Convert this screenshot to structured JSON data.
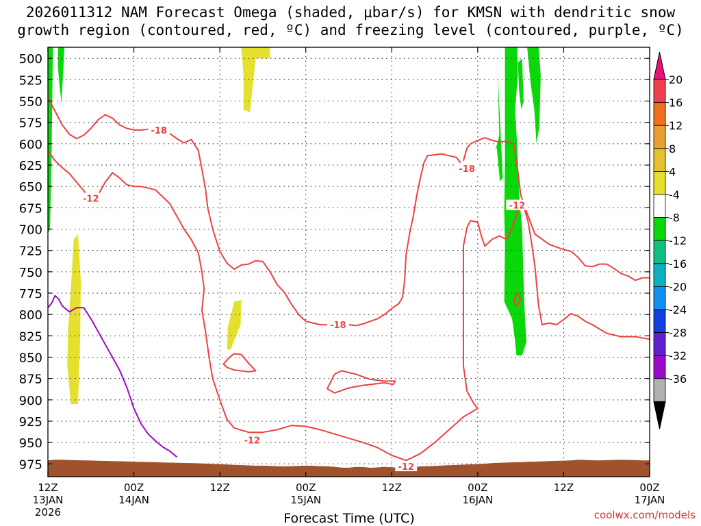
{
  "title": {
    "line1": "2026011312 NAM Forecast Omega (shaded, μbar/s) for KMSN with dendritic snow",
    "line2": "growth region (contoured, red, ºC) and freezing level (contoured, purple, ºC)"
  },
  "footer": {
    "xlabel": "Forecast Time (UTC)",
    "credit": "coolwx.com/models"
  },
  "colors": {
    "red_contour": "#ef4040",
    "purple_contour": "#9a08c8",
    "ground": "#a0522d",
    "yellow": "#e5e02e",
    "green": "#0ad80a"
  },
  "chart_data": {
    "type": "heatmap",
    "title": "2026011312 NAM Forecast Omega (shaded, μbar/s) for KMSN with dendritic snow growth region (contoured, red, ºC) and freezing level (contoured, purple, ºC)",
    "xlabel": "Forecast Time (UTC)",
    "ylabel": "",
    "x_range_hours": [
      0,
      84
    ],
    "y_range_hpa": [
      487,
      990
    ],
    "y_ticks": [
      500,
      525,
      550,
      575,
      600,
      625,
      650,
      675,
      700,
      725,
      750,
      775,
      800,
      825,
      850,
      875,
      900,
      925,
      950,
      975
    ],
    "x_ticks": [
      {
        "hour": 0,
        "line1": "12Z",
        "line2": "13JAN",
        "line3": "2026"
      },
      {
        "hour": 12,
        "line1": "00Z",
        "line2": "14JAN",
        "line3": ""
      },
      {
        "hour": 24,
        "line1": "12Z",
        "line2": "",
        "line3": ""
      },
      {
        "hour": 36,
        "line1": "00Z",
        "line2": "15JAN",
        "line3": ""
      },
      {
        "hour": 48,
        "line1": "12Z",
        "line2": "",
        "line3": ""
      },
      {
        "hour": 60,
        "line1": "00Z",
        "line2": "16JAN",
        "line3": ""
      },
      {
        "hour": 72,
        "line1": "12Z",
        "line2": "",
        "line3": ""
      },
      {
        "hour": 84,
        "line1": "00Z",
        "line2": "17JAN",
        "line3": ""
      }
    ],
    "colorbar": {
      "labels": [
        "20",
        "16",
        "12",
        "8",
        "4",
        "-4",
        "-8",
        "-12",
        "-16",
        "-20",
        "-24",
        "-28",
        "-32",
        "-36"
      ],
      "colors": [
        "#f04050",
        "#f07020",
        "#e8a030",
        "#e5c030",
        "#e5e02e",
        "#ffffff",
        "#0ad80a",
        "#10c080",
        "#10b0c0",
        "#1090f0",
        "#1040e0",
        "#6020d0",
        "#9a08c8",
        "#b0b0b0"
      ]
    },
    "contour_labels": [
      {
        "text": "-18",
        "hour": 15.5,
        "hpa": 584
      },
      {
        "text": "-12",
        "hour": 6.0,
        "hpa": 664
      },
      {
        "text": "-18",
        "hour": 40.5,
        "hpa": 812
      },
      {
        "text": "-12",
        "hour": 28.5,
        "hpa": 947
      },
      {
        "text": "-12",
        "hour": 50.0,
        "hpa": 978
      },
      {
        "text": "-18",
        "hour": 58.5,
        "hpa": 629
      },
      {
        "text": "-12",
        "hour": 65.5,
        "hpa": 672
      }
    ],
    "series": [
      {
        "name": "dgz_-18_upper",
        "color": "#ef4040",
        "points": [
          [
            0,
            546
          ],
          [
            1,
            562
          ],
          [
            2,
            578
          ],
          [
            3,
            589
          ],
          [
            4,
            594
          ],
          [
            5,
            590
          ],
          [
            6,
            582
          ],
          [
            7,
            572
          ],
          [
            8,
            566
          ],
          [
            9,
            570
          ],
          [
            10,
            578
          ],
          [
            11,
            582
          ],
          [
            12,
            584
          ],
          [
            13,
            584
          ],
          [
            14,
            583
          ],
          [
            15,
            584
          ],
          [
            17,
            588
          ],
          [
            18,
            594
          ],
          [
            19,
            599
          ],
          [
            20,
            595
          ],
          [
            21,
            608
          ],
          [
            21.5,
            630
          ],
          [
            22,
            653
          ],
          [
            22.3,
            675
          ],
          [
            23,
            700
          ],
          [
            24,
            726
          ],
          [
            25,
            740
          ],
          [
            26,
            747
          ],
          [
            27,
            742
          ],
          [
            28,
            741
          ],
          [
            29,
            737
          ],
          [
            30,
            738
          ],
          [
            31,
            750
          ],
          [
            32,
            765
          ],
          [
            33,
            774
          ],
          [
            34,
            788
          ],
          [
            35,
            800
          ],
          [
            36,
            808
          ],
          [
            37,
            810
          ],
          [
            38,
            812
          ],
          [
            39,
            812
          ],
          [
            40,
            810
          ],
          [
            41,
            811
          ],
          [
            42,
            812
          ],
          [
            43,
            813
          ],
          [
            44,
            811
          ],
          [
            45,
            808
          ],
          [
            46,
            805
          ],
          [
            47,
            800
          ],
          [
            48,
            793
          ],
          [
            49,
            787
          ],
          [
            49.5,
            780
          ],
          [
            49.8,
            760
          ],
          [
            50,
            730
          ],
          [
            50.5,
            705
          ],
          [
            51,
            685
          ],
          [
            51.5,
            660
          ],
          [
            52,
            640
          ],
          [
            52.5,
            622
          ],
          [
            53,
            614
          ],
          [
            55,
            612
          ],
          [
            56,
            614
          ],
          [
            57,
            616
          ],
          [
            57.5,
            621
          ],
          [
            57.5,
            627
          ]
        ]
      },
      {
        "name": "dgz_-12_upper",
        "color": "#ef4040",
        "points": [
          [
            0,
            608
          ],
          [
            1,
            620
          ],
          [
            2,
            628
          ],
          [
            3,
            635
          ],
          [
            4,
            645
          ],
          [
            5,
            655
          ],
          [
            5.5,
            661
          ]
        ]
      },
      {
        "name": "dgz_-12_cont",
        "color": "#ef4040",
        "points": [
          [
            7,
            660
          ],
          [
            8,
            645
          ],
          [
            9,
            634
          ],
          [
            10,
            640
          ],
          [
            11,
            648
          ],
          [
            12,
            650
          ],
          [
            13,
            650
          ],
          [
            14,
            652
          ],
          [
            15,
            654
          ],
          [
            16,
            662
          ],
          [
            17,
            670
          ],
          [
            18,
            685
          ],
          [
            19,
            700
          ],
          [
            20,
            712
          ],
          [
            21,
            728
          ],
          [
            21.5,
            750
          ],
          [
            21.8,
            770
          ],
          [
            21.5,
            795
          ],
          [
            22,
            820
          ],
          [
            22.5,
            850
          ],
          [
            23,
            875
          ],
          [
            24,
            900
          ],
          [
            25,
            923
          ],
          [
            26,
            933
          ],
          [
            28,
            938
          ],
          [
            30,
            938
          ],
          [
            32,
            935
          ],
          [
            34,
            930
          ],
          [
            36,
            931
          ],
          [
            38,
            935
          ],
          [
            40,
            940
          ],
          [
            42,
            945
          ],
          [
            44,
            950
          ],
          [
            46,
            956
          ],
          [
            48,
            965
          ],
          [
            50,
            971
          ],
          [
            52,
            963
          ],
          [
            54,
            950
          ],
          [
            56,
            935
          ],
          [
            58,
            920
          ],
          [
            59,
            915
          ],
          [
            60,
            910
          ],
          [
            59.5,
            905
          ],
          [
            58.5,
            890
          ],
          [
            58,
            860
          ],
          [
            58,
            820
          ],
          [
            58,
            780
          ],
          [
            58,
            720
          ],
          [
            58.5,
            698
          ],
          [
            59,
            690
          ],
          [
            60,
            692
          ],
          [
            60.5,
            708
          ],
          [
            61,
            720
          ],
          [
            62,
            712
          ],
          [
            63,
            708
          ],
          [
            64,
            712
          ],
          [
            65,
            695
          ],
          [
            65.5,
            680
          ],
          [
            66,
            672
          ],
          [
            66.5,
            676
          ],
          [
            67,
            690
          ],
          [
            67.5,
            715
          ],
          [
            68,
            745
          ],
          [
            68.5,
            790
          ],
          [
            69,
            812
          ],
          [
            70,
            810
          ],
          [
            71,
            812
          ],
          [
            72,
            806
          ],
          [
            73,
            799
          ],
          [
            74,
            802
          ],
          [
            75,
            808
          ],
          [
            76,
            812
          ],
          [
            78,
            822
          ],
          [
            80,
            826
          ],
          [
            82,
            826
          ],
          [
            84,
            829
          ]
        ]
      },
      {
        "name": "dgz_-18_right",
        "color": "#ef4040",
        "points": [
          [
            58,
            620
          ],
          [
            58.5,
            605
          ],
          [
            59,
            600
          ],
          [
            60,
            596
          ],
          [
            61,
            593
          ],
          [
            62,
            596
          ],
          [
            63,
            598
          ],
          [
            64,
            597
          ],
          [
            65,
            600
          ],
          [
            65.5,
            625
          ],
          [
            66,
            660
          ],
          [
            67,
            684
          ],
          [
            68,
            706
          ],
          [
            70,
            718
          ],
          [
            72,
            724
          ],
          [
            73,
            726
          ],
          [
            74,
            733
          ],
          [
            75,
            743
          ],
          [
            76,
            744
          ],
          [
            77,
            741
          ],
          [
            78,
            741
          ],
          [
            79,
            746
          ],
          [
            80,
            752
          ],
          [
            81,
            755
          ],
          [
            82,
            760
          ],
          [
            83,
            757
          ],
          [
            84,
            757
          ]
        ]
      },
      {
        "name": "dgz_-18_closed",
        "color": "#ef4040",
        "points": [
          [
            40,
            870
          ],
          [
            41,
            866
          ],
          [
            43,
            870
          ],
          [
            45,
            876
          ],
          [
            47,
            878
          ],
          [
            48.5,
            878
          ],
          [
            48.2,
            882
          ],
          [
            47,
            880
          ],
          [
            44,
            883
          ],
          [
            42,
            886
          ],
          [
            40,
            892
          ],
          [
            39,
            887
          ],
          [
            40,
            870
          ]
        ]
      },
      {
        "name": "dgz_-12_closed_small",
        "color": "#ef4040",
        "points": [
          [
            25.5,
            849
          ],
          [
            26,
            846
          ],
          [
            27,
            847
          ],
          [
            28,
            857
          ],
          [
            29,
            866
          ],
          [
            28,
            867
          ],
          [
            26,
            865
          ],
          [
            25,
            862
          ],
          [
            24.5,
            858
          ],
          [
            25.5,
            849
          ]
        ]
      },
      {
        "name": "dgz_-12_closed_tiny",
        "color": "#ef4040",
        "points": [
          [
            65.5,
            775
          ],
          [
            66,
            782
          ],
          [
            65.5,
            790
          ],
          [
            65,
            785
          ],
          [
            65.5,
            775
          ]
        ]
      },
      {
        "name": "freezing_level_0C",
        "color": "#9a08c8",
        "points": [
          [
            0,
            792
          ],
          [
            0.5,
            787
          ],
          [
            1,
            778
          ],
          [
            1.5,
            782
          ],
          [
            2,
            790
          ],
          [
            3,
            797
          ],
          [
            4,
            792
          ],
          [
            5,
            792
          ],
          [
            6,
            805
          ],
          [
            7,
            820
          ],
          [
            8,
            835
          ],
          [
            9,
            850
          ],
          [
            10,
            865
          ],
          [
            11,
            885
          ],
          [
            12,
            910
          ],
          [
            13,
            928
          ],
          [
            14,
            940
          ],
          [
            15,
            948
          ],
          [
            16,
            955
          ],
          [
            17,
            960
          ],
          [
            18,
            967
          ]
        ]
      }
    ]
  }
}
